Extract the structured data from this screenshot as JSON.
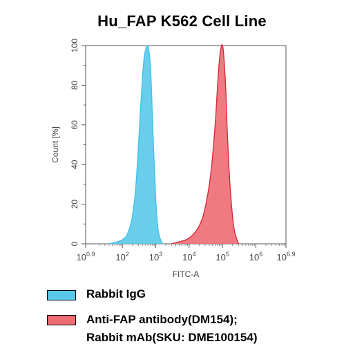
{
  "chart_data": {
    "type": "area",
    "title": "Hu_FAP K562 Cell Line",
    "xlabel": "FITC-A",
    "ylabel": "Count [%]",
    "x_scale": "log",
    "xlim": [
      7.94,
      7943282
    ],
    "ylim": [
      0,
      100
    ],
    "x_ticks": [
      {
        "base": "10",
        "exp": "0.9",
        "value": 7.94
      },
      {
        "base": "10",
        "exp": "2",
        "value": 100
      },
      {
        "base": "10",
        "exp": "3",
        "value": 1000
      },
      {
        "base": "10",
        "exp": "4",
        "value": 10000
      },
      {
        "base": "10",
        "exp": "5",
        "value": 100000
      },
      {
        "base": "10",
        "exp": "6",
        "value": 1000000
      },
      {
        "base": "10",
        "exp": "6.9",
        "value": 7943282
      }
    ],
    "y_ticks": [
      "0",
      "20",
      "40",
      "60",
      "80",
      "100"
    ],
    "grid": false,
    "legend_position": "bottom",
    "series": [
      {
        "name": "Rabbit IgG",
        "color": "#3ec3e6",
        "fill": "#59c9ea",
        "x": [
          40,
          100,
          150,
          200,
          250,
          300,
          350,
          400,
          450,
          500,
          550,
          600,
          650,
          700,
          750,
          800,
          900,
          1000,
          1100,
          1200,
          1400,
          1600
        ],
        "y": [
          0,
          2,
          6,
          14,
          28,
          48,
          68,
          84,
          94,
          98,
          100,
          99,
          95,
          88,
          76,
          62,
          40,
          22,
          12,
          6,
          2,
          0
        ]
      },
      {
        "name": "Anti-FAP antibody(DM154); Rabbit mAb(SKU: DME100154)",
        "color": "#d42b3a",
        "fill": "#ee6b74",
        "x": [
          3000,
          5000,
          8000,
          12000,
          20000,
          30000,
          45000,
          60000,
          70000,
          80000,
          90000,
          100000,
          110000,
          125000,
          140000,
          170000,
          220000,
          300000
        ],
        "y": [
          0,
          1,
          2,
          4,
          9,
          18,
          36,
          60,
          78,
          92,
          99,
          100,
          94,
          78,
          55,
          28,
          8,
          0
        ]
      }
    ]
  },
  "legend": {
    "items": [
      {
        "label": "Rabbit IgG",
        "color": "#59c9ea"
      },
      {
        "label": "Anti-FAP antibody(DM154);\nRabbit mAb(SKU: DME100154)",
        "color": "#ee6b74"
      }
    ]
  }
}
